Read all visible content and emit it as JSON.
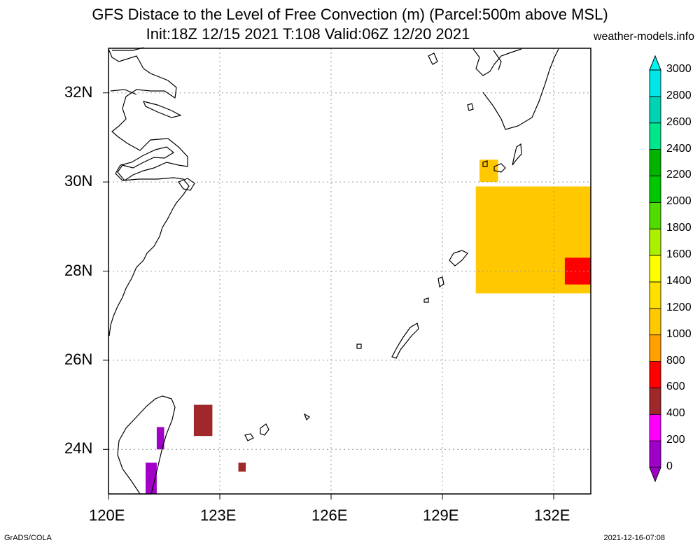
{
  "title_line1": "GFS Distace to the Level of Free Convection (m) (Parcel:500m above MSL)",
  "title_line2": "Init:18Z 12/15 2021 T:108 Valid:06Z 12/20 2021",
  "site": "weather-models.info",
  "footer_left": "GrADS/COLA",
  "footer_right": "2021-12-16-07:08",
  "map": {
    "lon_range": [
      120,
      133
    ],
    "lat_range": [
      23,
      33
    ],
    "lon_ticks": [
      {
        "value": 120,
        "label": "120E"
      },
      {
        "value": 123,
        "label": "123E"
      },
      {
        "value": 126,
        "label": "126E"
      },
      {
        "value": 129,
        "label": "129E"
      },
      {
        "value": 132,
        "label": "132E"
      }
    ],
    "lat_ticks": [
      {
        "value": 24,
        "label": "24N"
      },
      {
        "value": 26,
        "label": "26N"
      },
      {
        "value": 28,
        "label": "28N"
      },
      {
        "value": 30,
        "label": "30N"
      },
      {
        "value": 32,
        "label": "32N"
      }
    ],
    "grid": true
  },
  "colorbar": {
    "levels": [
      "0",
      "200",
      "400",
      "600",
      "800",
      "1000",
      "1200",
      "1400",
      "1600",
      "1800",
      "2000",
      "2200",
      "2400",
      "2600",
      "2800",
      "3000"
    ],
    "colors": [
      "#a000c8",
      "#ff00ff",
      "#a0282a",
      "#ff0000",
      "#ffa000",
      "#ffc800",
      "#ffe000",
      "#ffff00",
      "#aaf000",
      "#50dc00",
      "#00c800",
      "#00b400",
      "#00e68c",
      "#00d2b4",
      "#00e6e6",
      "#00f5f0"
    ]
  },
  "chart_data": {
    "type": "heatmap",
    "variable": "Distance to LFC (m)",
    "regions": [
      {
        "lon": [
          130.0,
          130.5
        ],
        "lat": [
          30.0,
          30.5
        ],
        "value": 1000
      },
      {
        "lon": [
          129.9,
          133.0
        ],
        "lat": [
          27.5,
          29.9
        ],
        "value": 1000
      },
      {
        "lon": [
          132.3,
          133.0
        ],
        "lat": [
          27.7,
          28.3
        ],
        "value": 600
      },
      {
        "lon": [
          122.3,
          122.8
        ],
        "lat": [
          24.3,
          25.0
        ],
        "value": 400
      },
      {
        "lon": [
          123.5,
          123.7
        ],
        "lat": [
          23.5,
          23.7
        ],
        "value": 400
      },
      {
        "lon": [
          121.3,
          121.5
        ],
        "lat": [
          24.0,
          24.5
        ],
        "value": 100
      },
      {
        "lon": [
          121.0,
          121.3
        ],
        "lat": [
          23.0,
          23.7
        ],
        "value": 100
      }
    ]
  }
}
